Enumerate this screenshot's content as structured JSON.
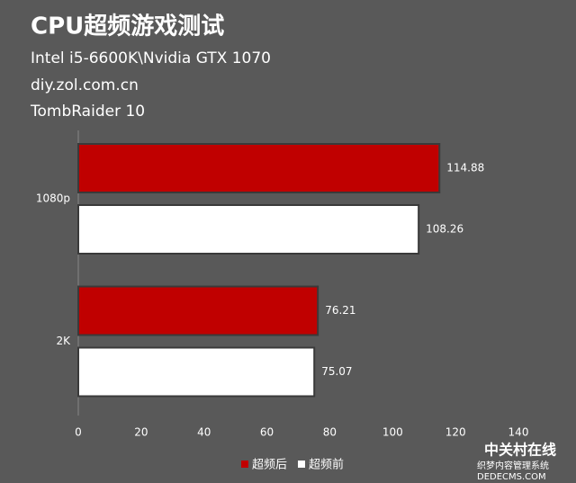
{
  "chart_data": {
    "type": "barh",
    "title": "CPU超频游戏测试",
    "subtitles": [
      "Intel i5-6600K\\Nvidia GTX 1070",
      "diy.zol.com.cn",
      "TombRaider 10"
    ],
    "categories": [
      "1080p",
      "2K"
    ],
    "series": [
      {
        "name": "超频后",
        "color": "#c00000",
        "values": [
          114.88,
          76.21
        ]
      },
      {
        "name": "超频前",
        "color": "#ffffff",
        "values": [
          108.26,
          75.07
        ]
      }
    ],
    "xlim": [
      0,
      140
    ],
    "xticks": [
      0,
      20,
      40,
      60,
      80,
      100,
      120,
      140
    ],
    "watermark": [
      "中关村在线",
      "织梦内容管理系统",
      "DEDECMS.COM"
    ]
  }
}
